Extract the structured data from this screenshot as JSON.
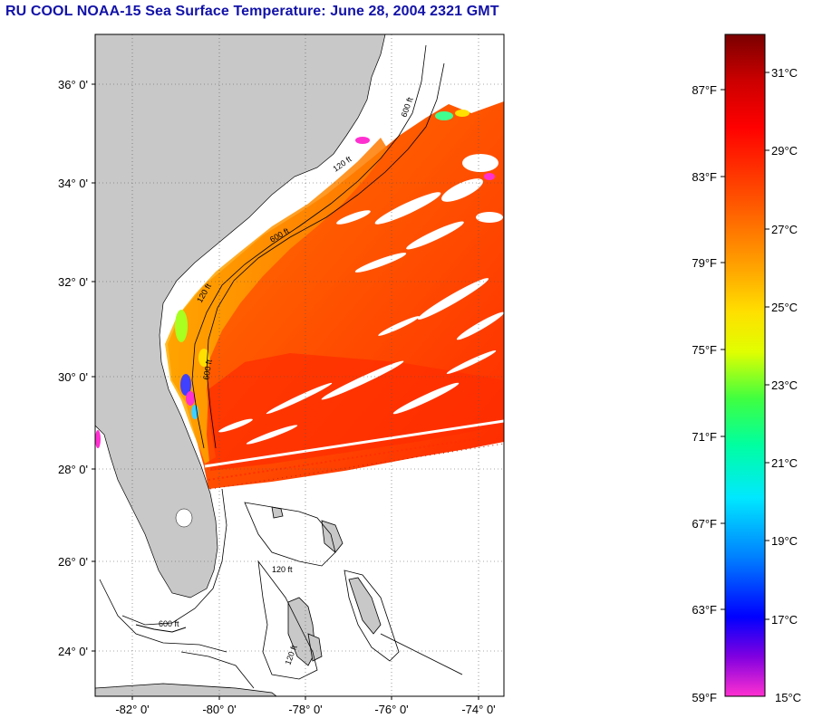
{
  "header": {
    "title": "RU COOL  NOAA-15  Sea Surface Temperature:  June 28, 2004 2321 GMT"
  },
  "map": {
    "lat_labels": [
      "36° 0'",
      "34° 0'",
      "32° 0'",
      "30° 0'",
      "28° 0'",
      "26° 0'",
      "24° 0'"
    ],
    "lon_labels": [
      "-82° 0'",
      "-80° 0'",
      "-78° 0'",
      "-76° 0'",
      "-74° 0'"
    ],
    "contour_labels": [
      "120 ft",
      "600 ft",
      "120 ft",
      "600 ft",
      "120 ft",
      "600 ft",
      "120 ft",
      "600 ft"
    ]
  },
  "colorbar": {
    "fahrenheit_labels": [
      "87°F",
      "83°F",
      "79°F",
      "75°F",
      "71°F",
      "67°F",
      "63°F",
      "59°F"
    ],
    "celsius_labels": [
      "31°C",
      "29°C",
      "27°C",
      "25°C",
      "23°C",
      "21°C",
      "19°C",
      "17°C",
      "15°C"
    ]
  },
  "colors": {
    "title": "#1212a8",
    "land": "#c8c8c8",
    "ocean_warm": "#ff5a00",
    "ocean_hot": "#ff2a00"
  }
}
